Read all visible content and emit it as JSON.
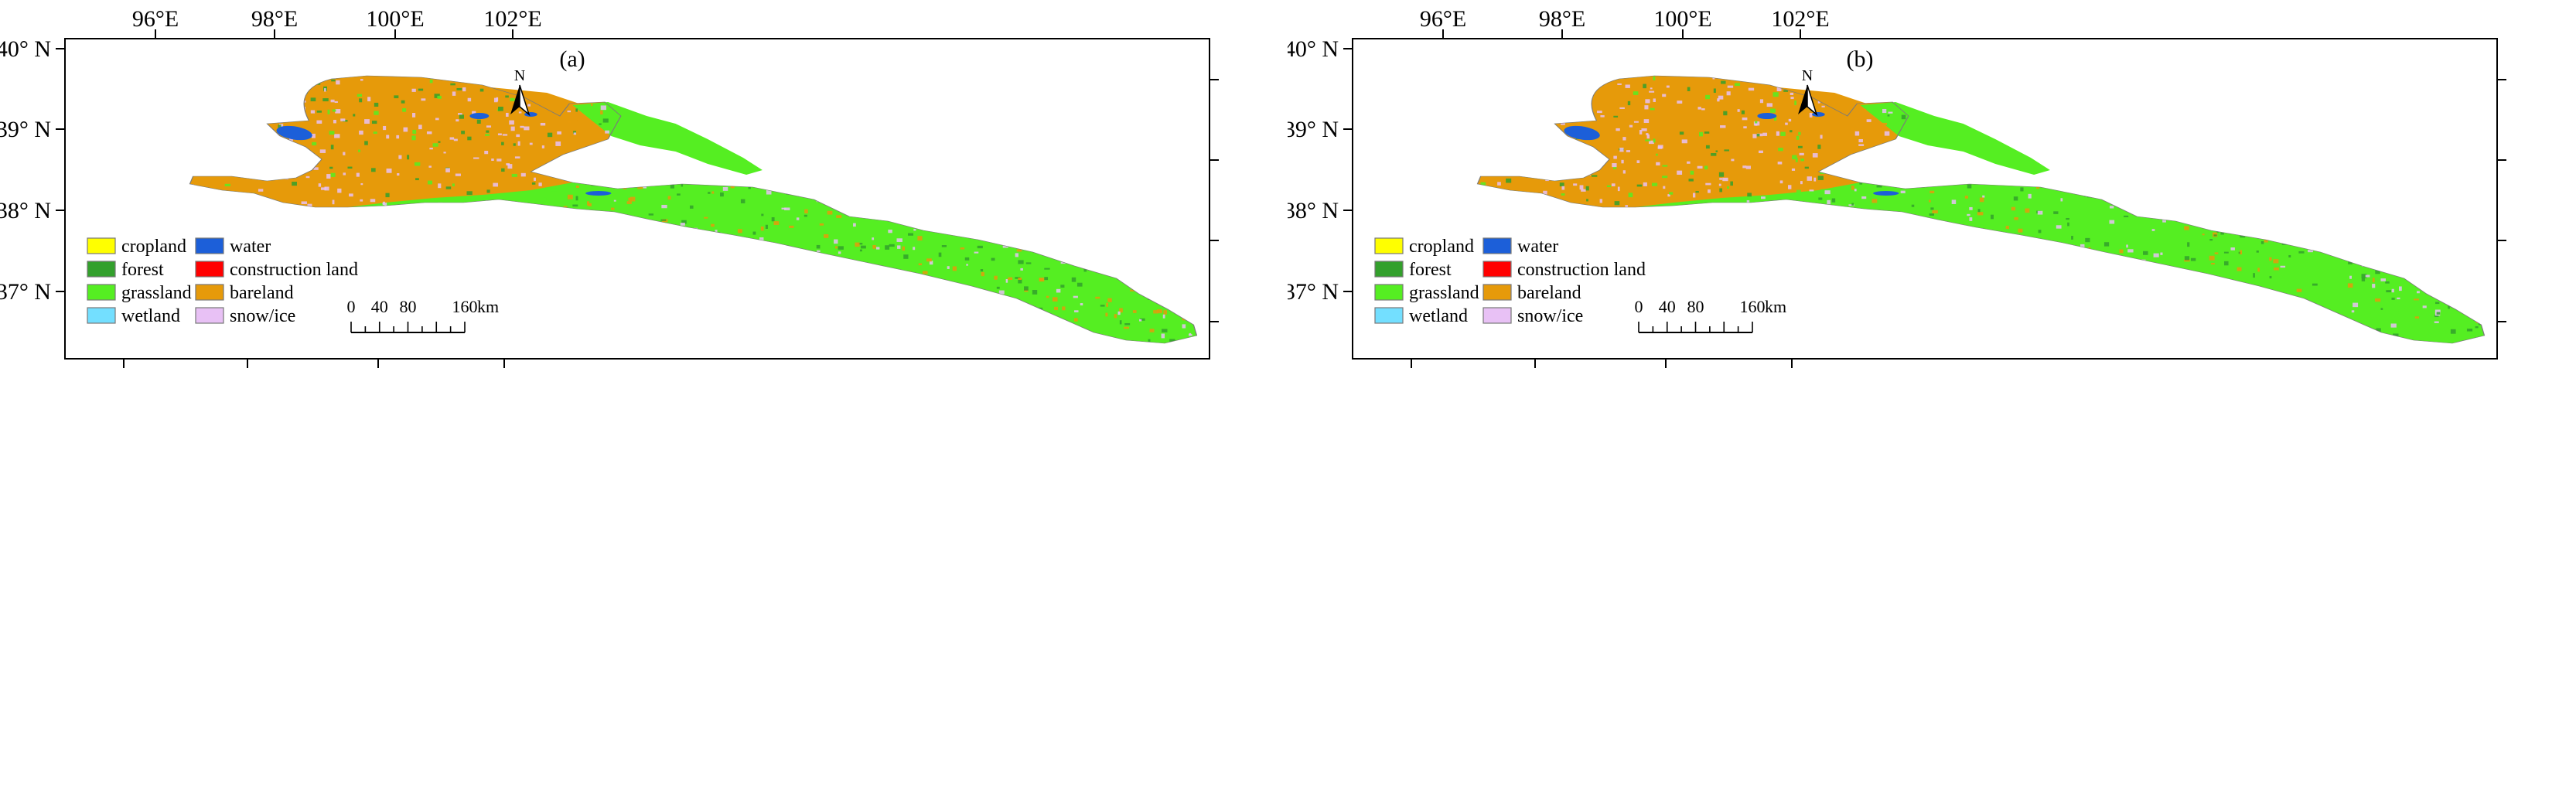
{
  "colors": {
    "cropland": "#ffff00",
    "forest": "#33a02c",
    "grassland": "#55ee22",
    "wetland": "#73dfff",
    "water": "#1c5fd9",
    "construction_land": "#ff0000",
    "bareland": "#e69a0a",
    "snow_ice": "#e8c1f5",
    "frame": "#000000"
  },
  "axes": {
    "x_ticks": [
      "96°E",
      "98°E",
      "100°E",
      "102°E"
    ],
    "y_ticks": [
      "40° N",
      "39° N",
      "38° N",
      "37° N"
    ],
    "lon_range": [
      94.5,
      103.4
    ],
    "lat_range": [
      36.2,
      40.05
    ]
  },
  "legend": [
    {
      "label": "cropland",
      "color": "#ffff00"
    },
    {
      "label": "forest",
      "color": "#33a02c"
    },
    {
      "label": "grassland",
      "color": "#55ee22"
    },
    {
      "label": "wetland",
      "color": "#73dfff"
    },
    {
      "label": "water",
      "color": "#1c5fd9"
    },
    {
      "label": "construction land",
      "color": "#ff0000"
    },
    {
      "label": "bareland",
      "color": "#e69a0a"
    },
    {
      "label": "snow/ice",
      "color": "#e8c1f5"
    }
  ],
  "north_arrow": {
    "label": "N",
    "icon": "north-arrow-icon"
  },
  "scale_bar": {
    "ticks": [
      "0",
      "40",
      "80",
      "160"
    ],
    "unit": "km"
  },
  "panels": [
    {
      "id": "a",
      "label": "(a)"
    },
    {
      "id": "b",
      "label": "(b)"
    }
  ]
}
